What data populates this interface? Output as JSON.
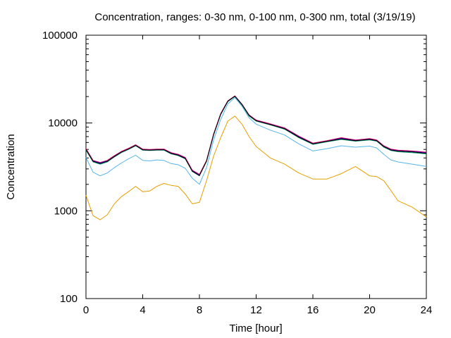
{
  "chart_data": {
    "type": "line",
    "title": "Concentration, ranges: 0-30 nm, 0-100 nm, 0-300 nm, total (3/19/19)",
    "xlabel": "Time [hour]",
    "ylabel": "Concentration",
    "xlim": [
      0,
      24
    ],
    "ylim": [
      100,
      100000
    ],
    "yscale": "log",
    "grid": false,
    "legend": "none",
    "xticks": [
      0,
      4,
      8,
      12,
      16,
      20,
      24
    ],
    "xtick_labels": [
      "0",
      "4",
      "8",
      "12",
      "16",
      "20",
      "24"
    ],
    "yticks": [
      100,
      1000,
      10000,
      100000
    ],
    "ytick_labels": [
      "100",
      "1000",
      "10000",
      "100000"
    ],
    "x": [
      0,
      0.5,
      1,
      1.5,
      2,
      2.5,
      3,
      3.5,
      4,
      4.5,
      5,
      5.5,
      6,
      6.5,
      7,
      7.5,
      8,
      8.5,
      9,
      9.5,
      10,
      10.5,
      11,
      11.5,
      12,
      13,
      14,
      15,
      16,
      17,
      18,
      19,
      20,
      20.5,
      21,
      21.5,
      22,
      23,
      24
    ],
    "series": [
      {
        "color": "#e69f00",
        "values": [
          1500,
          880,
          790,
          900,
          1200,
          1450,
          1650,
          1900,
          1650,
          1680,
          1900,
          2050,
          1950,
          1900,
          1550,
          1200,
          1250,
          2200,
          4200,
          6800,
          10500,
          12000,
          9700,
          7000,
          5400,
          4000,
          3400,
          2700,
          2300,
          2300,
          2650,
          3200,
          2500,
          2450,
          2200,
          1700,
          1300,
          1100,
          850
        ]
      },
      {
        "color": "#56b4e9",
        "values": [
          4050,
          2750,
          2500,
          2700,
          3100,
          3500,
          3900,
          4300,
          3750,
          3700,
          3800,
          3750,
          3450,
          3350,
          3050,
          2350,
          2000,
          3100,
          6400,
          11000,
          16500,
          19500,
          15500,
          11500,
          9700,
          8300,
          7300,
          5800,
          4800,
          5100,
          5500,
          5300,
          5450,
          5200,
          4400,
          3800,
          3600,
          3400,
          3200
        ]
      },
      {
        "color": "#009e73",
        "values": [
          4900,
          3600,
          3400,
          3600,
          4100,
          4600,
          5000,
          5500,
          4900,
          4850,
          4900,
          4900,
          4450,
          4250,
          3900,
          2800,
          2500,
          3650,
          7300,
          12500,
          17500,
          20000,
          16000,
          12000,
          10500,
          9500,
          8500,
          6800,
          5700,
          6100,
          6500,
          6200,
          6400,
          6200,
          5300,
          4850,
          4700,
          4600,
          4450
        ]
      },
      {
        "color": "#0000cc",
        "values": [
          5050,
          3700,
          3500,
          3700,
          4200,
          4700,
          5100,
          5600,
          5000,
          4950,
          5000,
          5000,
          4550,
          4350,
          4000,
          2850,
          2550,
          3700,
          7400,
          12700,
          17800,
          20300,
          16300,
          12300,
          10700,
          9700,
          8700,
          7000,
          5850,
          6250,
          6700,
          6350,
          6600,
          6350,
          5450,
          5000,
          4850,
          4750,
          4600
        ]
      },
      {
        "color": "#cc0066",
        "values": [
          5100,
          3750,
          3550,
          3750,
          4250,
          4750,
          5150,
          5650,
          5050,
          5000,
          5050,
          5050,
          4600,
          4400,
          4050,
          2900,
          2600,
          3750,
          7500,
          12800,
          17900,
          20400,
          16400,
          12400,
          10800,
          9800,
          8800,
          7100,
          5900,
          6300,
          6800,
          6400,
          6650,
          6400,
          5500,
          5050,
          4900,
          4800,
          4650
        ]
      },
      {
        "color": "#000000",
        "values": [
          5000,
          3650,
          3450,
          3650,
          4150,
          4650,
          5050,
          5550,
          4950,
          4900,
          4950,
          4950,
          4500,
          4300,
          3950,
          2820,
          2520,
          3680,
          7350,
          12600,
          17700,
          20200,
          16200,
          12200,
          10600,
          9600,
          8600,
          6900,
          5780,
          6180,
          6600,
          6280,
          6500,
          6280,
          5380,
          4920,
          4780,
          4680,
          4520
        ]
      }
    ]
  }
}
